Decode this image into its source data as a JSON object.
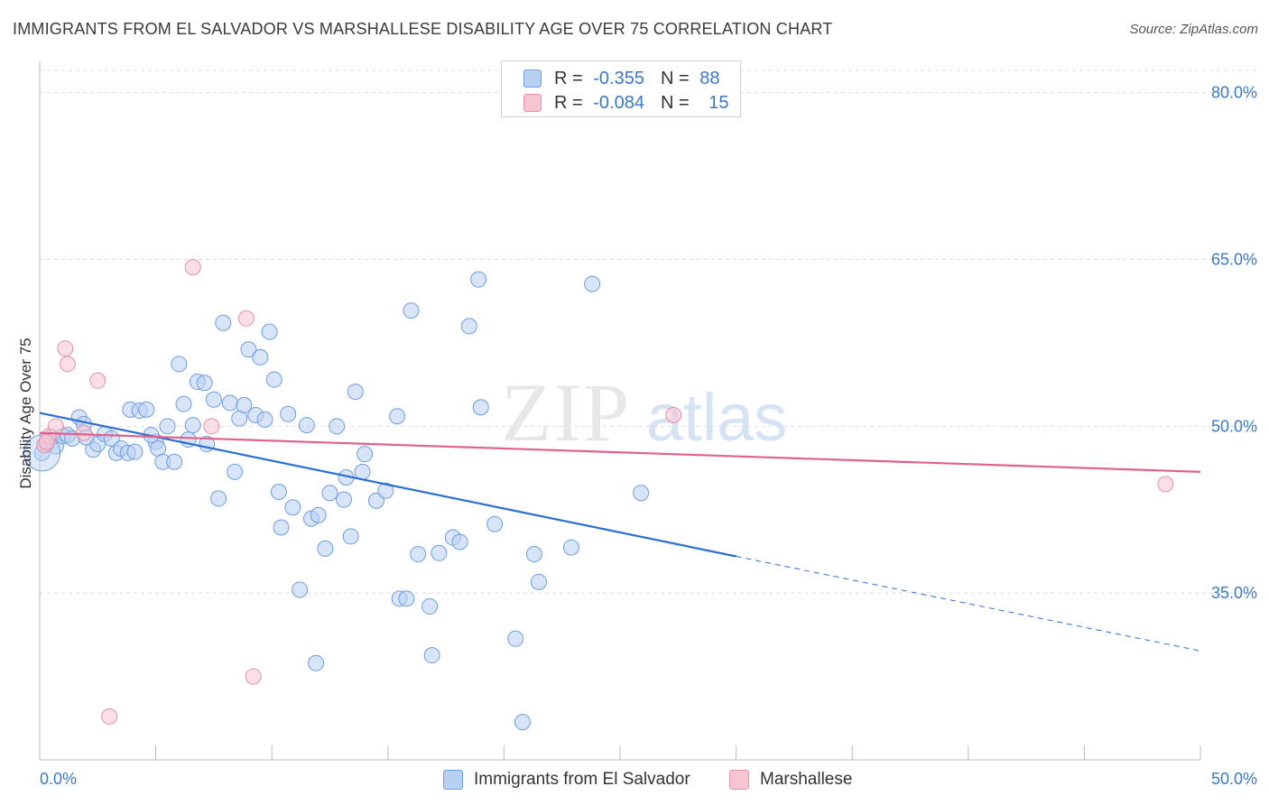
{
  "title": "IMMIGRANTS FROM EL SALVADOR VS MARSHALLESE DISABILITY AGE OVER 75 CORRELATION CHART",
  "source": "Source: ZipAtlas.com",
  "watermark": {
    "zip": "ZIP",
    "atlas": "atlas"
  },
  "colors": {
    "blue_fill": "#b8d0f2",
    "blue_stroke": "#6d9ee0",
    "blue_line": "#2b6fd1",
    "pink_fill": "#f7c4d2",
    "pink_stroke": "#e98fab",
    "pink_line": "#e0628c",
    "tick_text": "#3a78c9",
    "grid": "#dddddd"
  },
  "legend": {
    "rows": [
      {
        "r_label": "R =",
        "r_value": "-0.355",
        "n_label": "N =",
        "n_value": "88"
      },
      {
        "r_label": "R =",
        "r_value": "-0.084",
        "n_label": "N =",
        "n_value": "15"
      }
    ]
  },
  "bottom_legend": [
    "Immigrants from El Salvador",
    "Marshallese"
  ],
  "chart_data": {
    "type": "scatter",
    "title": "IMMIGRANTS FROM EL SALVADOR VS MARSHALLESE DISABILITY AGE OVER 75 CORRELATION CHART",
    "ylabel": "Disability Age Over 75",
    "xlabel": "",
    "xlim": [
      0,
      50
    ],
    "ylim": [
      20,
      82
    ],
    "x_ticks": [
      "0.0%",
      "50.0%"
    ],
    "y_ticks": [
      {
        "value": 35,
        "label": "35.0%"
      },
      {
        "value": 50,
        "label": "50.0%"
      },
      {
        "value": 65,
        "label": "65.0%"
      },
      {
        "value": 80,
        "label": "80.0%"
      }
    ],
    "grid": true,
    "legend_position": "top-center",
    "series": [
      {
        "name": "Immigrants from El Salvador",
        "r": -0.355,
        "n": 88,
        "trend": {
          "x0": 0,
          "y0": 51.2,
          "x1": 30,
          "y1": 38.3,
          "dashed_to_x": 50,
          "dashed_to_y": 29.8
        },
        "points": [
          [
            0.1,
            47.6
          ],
          [
            0.3,
            48.4
          ],
          [
            0.5,
            49.0
          ],
          [
            0.7,
            48.2
          ],
          [
            1.0,
            49.1
          ],
          [
            1.2,
            49.2
          ],
          [
            1.4,
            48.9
          ],
          [
            1.7,
            50.8
          ],
          [
            1.9,
            50.2
          ],
          [
            2.3,
            47.9
          ],
          [
            2.5,
            48.4
          ],
          [
            2.8,
            49.3
          ],
          [
            3.1,
            48.9
          ],
          [
            3.3,
            47.6
          ],
          [
            3.5,
            48.0
          ],
          [
            3.8,
            47.6
          ],
          [
            4.1,
            47.7
          ],
          [
            3.9,
            51.5
          ],
          [
            4.3,
            51.4
          ],
          [
            4.6,
            51.5
          ],
          [
            5.0,
            48.6
          ],
          [
            5.1,
            48.0
          ],
          [
            5.3,
            46.8
          ],
          [
            5.5,
            50.0
          ],
          [
            5.8,
            46.8
          ],
          [
            6.0,
            55.6
          ],
          [
            6.2,
            52.0
          ],
          [
            6.4,
            48.8
          ],
          [
            6.6,
            50.1
          ],
          [
            6.8,
            54.0
          ],
          [
            7.1,
            53.9
          ],
          [
            7.2,
            48.4
          ],
          [
            7.5,
            52.4
          ],
          [
            7.7,
            43.5
          ],
          [
            7.9,
            59.3
          ],
          [
            8.2,
            52.1
          ],
          [
            8.4,
            45.9
          ],
          [
            8.6,
            50.7
          ],
          [
            8.8,
            51.9
          ],
          [
            9.0,
            56.9
          ],
          [
            9.3,
            51.0
          ],
          [
            9.5,
            56.2
          ],
          [
            9.7,
            50.6
          ],
          [
            9.9,
            58.5
          ],
          [
            10.1,
            54.2
          ],
          [
            10.3,
            44.1
          ],
          [
            10.4,
            40.9
          ],
          [
            10.7,
            51.1
          ],
          [
            10.9,
            42.7
          ],
          [
            11.2,
            35.3
          ],
          [
            11.5,
            50.1
          ],
          [
            11.7,
            41.7
          ],
          [
            11.9,
            28.7
          ],
          [
            12.0,
            42.0
          ],
          [
            12.3,
            39.0
          ],
          [
            12.5,
            44.0
          ],
          [
            12.8,
            50.0
          ],
          [
            13.1,
            43.4
          ],
          [
            13.2,
            45.4
          ],
          [
            13.4,
            40.1
          ],
          [
            13.6,
            53.1
          ],
          [
            13.9,
            45.9
          ],
          [
            14.0,
            47.5
          ],
          [
            14.5,
            43.3
          ],
          [
            14.9,
            44.2
          ],
          [
            15.4,
            50.9
          ],
          [
            15.5,
            34.5
          ],
          [
            15.8,
            34.5
          ],
          [
            16.0,
            60.4
          ],
          [
            16.3,
            38.5
          ],
          [
            16.8,
            33.8
          ],
          [
            16.9,
            29.4
          ],
          [
            17.2,
            38.6
          ],
          [
            17.8,
            40.0
          ],
          [
            18.1,
            39.6
          ],
          [
            18.5,
            59.0
          ],
          [
            18.9,
            63.2
          ],
          [
            19.0,
            51.7
          ],
          [
            19.6,
            41.2
          ],
          [
            20.5,
            30.9
          ],
          [
            20.8,
            23.4
          ],
          [
            21.3,
            38.5
          ],
          [
            21.5,
            36.0
          ],
          [
            22.9,
            39.1
          ],
          [
            23.8,
            62.8
          ],
          [
            25.9,
            44.0
          ],
          [
            2.0,
            49.0
          ],
          [
            4.8,
            49.2
          ]
        ]
      },
      {
        "name": "Marshallese",
        "r": -0.084,
        "n": 15,
        "trend": {
          "x0": 0,
          "y0": 49.4,
          "x1": 50,
          "y1": 45.9
        },
        "points": [
          [
            0.2,
            48.3
          ],
          [
            0.4,
            49.1
          ],
          [
            0.7,
            50.0
          ],
          [
            1.1,
            57.0
          ],
          [
            1.2,
            55.6
          ],
          [
            1.9,
            49.4
          ],
          [
            2.5,
            54.1
          ],
          [
            3.0,
            23.9
          ],
          [
            6.6,
            64.3
          ],
          [
            7.4,
            50.0
          ],
          [
            8.9,
            59.7
          ],
          [
            9.2,
            27.5
          ],
          [
            27.3,
            51.0
          ],
          [
            48.5,
            44.8
          ],
          [
            0.3,
            48.6
          ]
        ]
      }
    ]
  }
}
